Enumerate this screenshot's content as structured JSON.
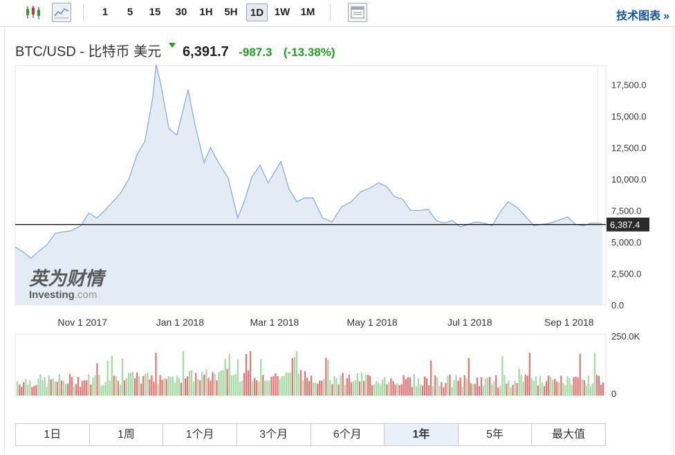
{
  "toolbar": {
    "icons": [
      "candlestick-icon",
      "line-chart-icon",
      "layout-icon"
    ],
    "timeframes": [
      "1",
      "5",
      "15",
      "30",
      "1H",
      "5H",
      "1D",
      "1W",
      "1M"
    ],
    "active_timeframe": "1D",
    "tech_link": "技术图表",
    "tech_arrow": "»"
  },
  "header": {
    "instrument": "BTC/USD - 比特币 美元",
    "price": "6,391.7",
    "change": "-987.3",
    "change_pct": "(-13.38%)",
    "change_color": "#19a319"
  },
  "watermark": {
    "chinese": "英为财情",
    "brand": "Investing",
    "suffix": ".com"
  },
  "periods": [
    "1日",
    "1周",
    "1个月",
    "3个月",
    "6个月",
    "1年",
    "5年",
    "最大值"
  ],
  "active_period": "1年",
  "chart_data": {
    "type": "area",
    "price_axis": {
      "ticks": [
        "17,500.0",
        "15,000.0",
        "12,500.0",
        "10,000.0",
        "7,500.0",
        "5,000.0",
        "2,500.0",
        "0.0"
      ],
      "tick_values": [
        17500,
        15000,
        12500,
        10000,
        7500,
        5000,
        2500,
        0
      ],
      "ylim": [
        0,
        19000
      ]
    },
    "x_ticks": [
      "Nov 1 2017",
      "Jan 1 2018",
      "Mar 1 2018",
      "May 1 2018",
      "Jul 1 2018",
      "Sep 1 2018"
    ],
    "current_line": {
      "value": 6387.4,
      "label": "6,387.4"
    },
    "series": [
      {
        "x": [
          "2017-09-20",
          "2017-09-25",
          "2017-09-30",
          "2017-10-05",
          "2017-10-10",
          "2017-10-15",
          "2017-10-20",
          "2017-10-25",
          "2017-10-31",
          "2017-11-05",
          "2017-11-10",
          "2017-11-15",
          "2017-11-20",
          "2017-11-25",
          "2017-11-30",
          "2017-12-05",
          "2017-12-10",
          "2017-12-15",
          "2017-12-17",
          "2017-12-20",
          "2017-12-25",
          "2017-12-30",
          "2018-01-06",
          "2018-01-10",
          "2018-01-16",
          "2018-01-20",
          "2018-01-25",
          "2018-01-31",
          "2018-02-06",
          "2018-02-10",
          "2018-02-15",
          "2018-02-20",
          "2018-02-25",
          "2018-03-05",
          "2018-03-10",
          "2018-03-15",
          "2018-03-20",
          "2018-03-25",
          "2018-03-31",
          "2018-04-06",
          "2018-04-12",
          "2018-04-18",
          "2018-04-24",
          "2018-04-30",
          "2018-05-05",
          "2018-05-10",
          "2018-05-15",
          "2018-05-20",
          "2018-05-25",
          "2018-05-31",
          "2018-06-05",
          "2018-06-10",
          "2018-06-15",
          "2018-06-20",
          "2018-06-25",
          "2018-06-30",
          "2018-07-05",
          "2018-07-10",
          "2018-07-15",
          "2018-07-20",
          "2018-07-25",
          "2018-07-31",
          "2018-08-05",
          "2018-08-10",
          "2018-08-15",
          "2018-08-20",
          "2018-08-25",
          "2018-08-31",
          "2018-09-05",
          "2018-09-10",
          "2018-09-15",
          "2018-09-20",
          "2018-09-22"
        ],
        "y": [
          4600,
          4200,
          3700,
          4300,
          4800,
          5700,
          5800,
          5900,
          6300,
          7300,
          6900,
          7500,
          8200,
          8900,
          10000,
          11900,
          13000,
          16500,
          19100,
          17500,
          14000,
          13500,
          17100,
          14500,
          11300,
          12500,
          11300,
          10100,
          6900,
          8200,
          10200,
          11100,
          9700,
          11400,
          9200,
          8200,
          8500,
          8500,
          6900,
          6600,
          7800,
          8200,
          9000,
          9300,
          9700,
          9400,
          8600,
          8400,
          7500,
          7500,
          7600,
          6700,
          6500,
          6700,
          6200,
          6400,
          6600,
          6500,
          6300,
          7400,
          8200,
          7700,
          7000,
          6300,
          6400,
          6500,
          6700,
          7000,
          6400,
          6300,
          6500,
          6500,
          6400
        ]
      }
    ],
    "volume": {
      "axis_ticks": [
        "250.0K",
        "0"
      ],
      "max": 250000,
      "up_color": "#a3d9a3",
      "down_color": "#e57373"
    }
  },
  "colors": {
    "area_fill": "#e3ecf4",
    "area_line": "#86aed6",
    "accent_link": "#1256a0",
    "vol_up": "#a3d9a3",
    "vol_down": "#e57373"
  }
}
